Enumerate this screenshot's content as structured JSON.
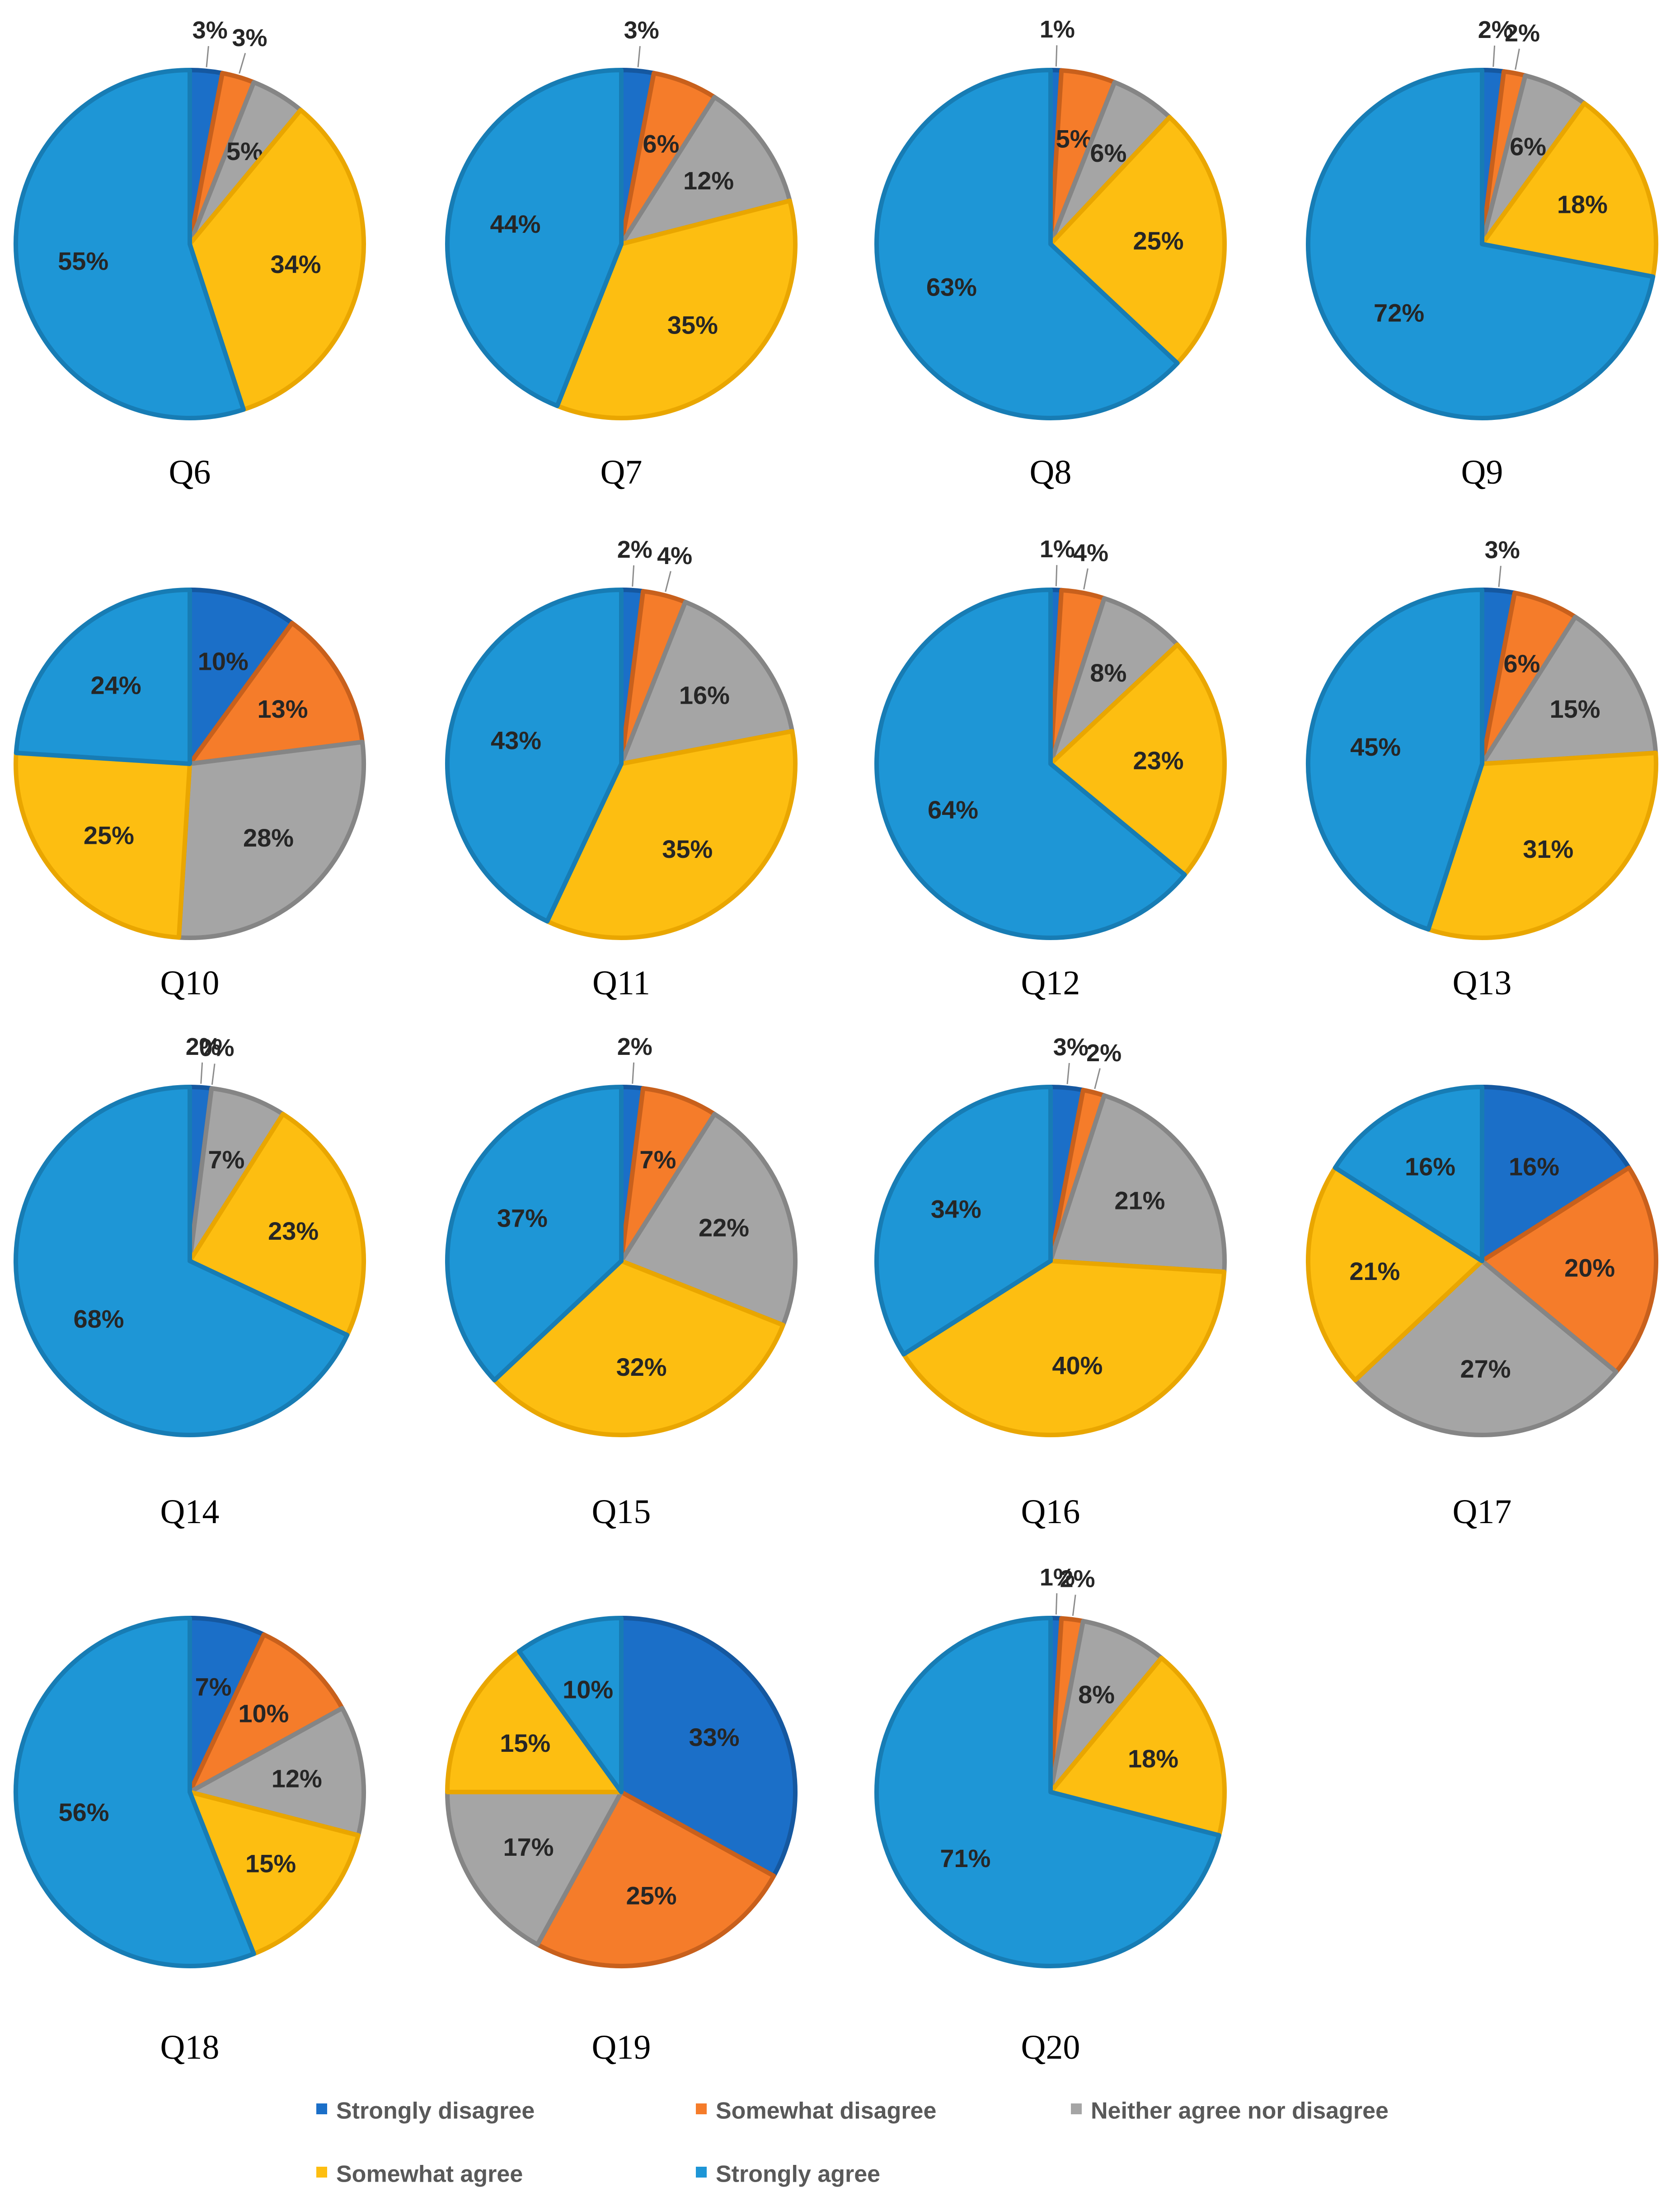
{
  "chart_data": {
    "type": "pie",
    "categories": [
      "Strongly disagree",
      "Somewhat disagree",
      "Neither agree nor disagree",
      "Somewhat agree",
      "Strongly agree"
    ],
    "colors": [
      "#1B6FC8",
      "#F57C2A",
      "#A5A5A5",
      "#FDBE11",
      "#1E96D6"
    ],
    "charts": [
      {
        "title": "Q6",
        "values": [
          3,
          3,
          5,
          34,
          55
        ],
        "labels": [
          "3%",
          "3%",
          "5%",
          "34%",
          "55%"
        ]
      },
      {
        "title": "Q7",
        "values": [
          3,
          6,
          12,
          35,
          44
        ],
        "labels": [
          "3%",
          "6%",
          "12%",
          "35%",
          "44%"
        ]
      },
      {
        "title": "Q8",
        "values": [
          1,
          5,
          6,
          25,
          63
        ],
        "labels": [
          "1%",
          "5%",
          "6%",
          "25%",
          "63%"
        ]
      },
      {
        "title": "Q9",
        "values": [
          2,
          2,
          6,
          18,
          72
        ],
        "labels": [
          "2%",
          "2%",
          "6%",
          "18%",
          "72%"
        ]
      },
      {
        "title": "Q10",
        "values": [
          10,
          13,
          28,
          25,
          24
        ],
        "labels": [
          "10%",
          "13%",
          "28%",
          "25%",
          "24%"
        ]
      },
      {
        "title": "Q11",
        "values": [
          2,
          4,
          16,
          35,
          43
        ],
        "labels": [
          "2%",
          "4%",
          "16%",
          "35%",
          "43%"
        ]
      },
      {
        "title": "Q12",
        "values": [
          1,
          4,
          8,
          23,
          64
        ],
        "labels": [
          "1%",
          "4%",
          "8%",
          "23%",
          "64%"
        ]
      },
      {
        "title": "Q13",
        "values": [
          3,
          6,
          15,
          31,
          45
        ],
        "labels": [
          "3%",
          "6%",
          "15%",
          "31%",
          "45%"
        ]
      },
      {
        "title": "Q14",
        "values": [
          2,
          0,
          7,
          23,
          68
        ],
        "labels": [
          "2%",
          "0%",
          "7%",
          "23%",
          "68%"
        ]
      },
      {
        "title": "Q15",
        "values": [
          2,
          7,
          22,
          32,
          37
        ],
        "labels": [
          "2%",
          "7%",
          "22%",
          "32%",
          "37%"
        ]
      },
      {
        "title": "Q16",
        "values": [
          3,
          2,
          21,
          40,
          34
        ],
        "labels": [
          "3%",
          "2%",
          "21%",
          "40%",
          "34%"
        ]
      },
      {
        "title": "Q17",
        "values": [
          16,
          20,
          27,
          21,
          16
        ],
        "labels": [
          "16%",
          "20%",
          "27%",
          "21%",
          "16%"
        ]
      },
      {
        "title": "Q18",
        "values": [
          7,
          10,
          12,
          15,
          56
        ],
        "labels": [
          "7%",
          "10%",
          "12%",
          "15%",
          "56%"
        ]
      },
      {
        "title": "Q19",
        "values": [
          33,
          25,
          17,
          15,
          10
        ],
        "labels": [
          "33%",
          "25%",
          "17%",
          "15%",
          "10%"
        ]
      },
      {
        "title": "Q20",
        "values": [
          1,
          2,
          8,
          18,
          71
        ],
        "labels": [
          "1%",
          "2%",
          "8%",
          "18%",
          "71%"
        ]
      }
    ],
    "legend": [
      "Strongly disagree",
      "Somewhat disagree",
      "Neither agree nor disagree",
      "Somewhat agree",
      "Strongly agree"
    ],
    "legend_position": "bottom"
  }
}
